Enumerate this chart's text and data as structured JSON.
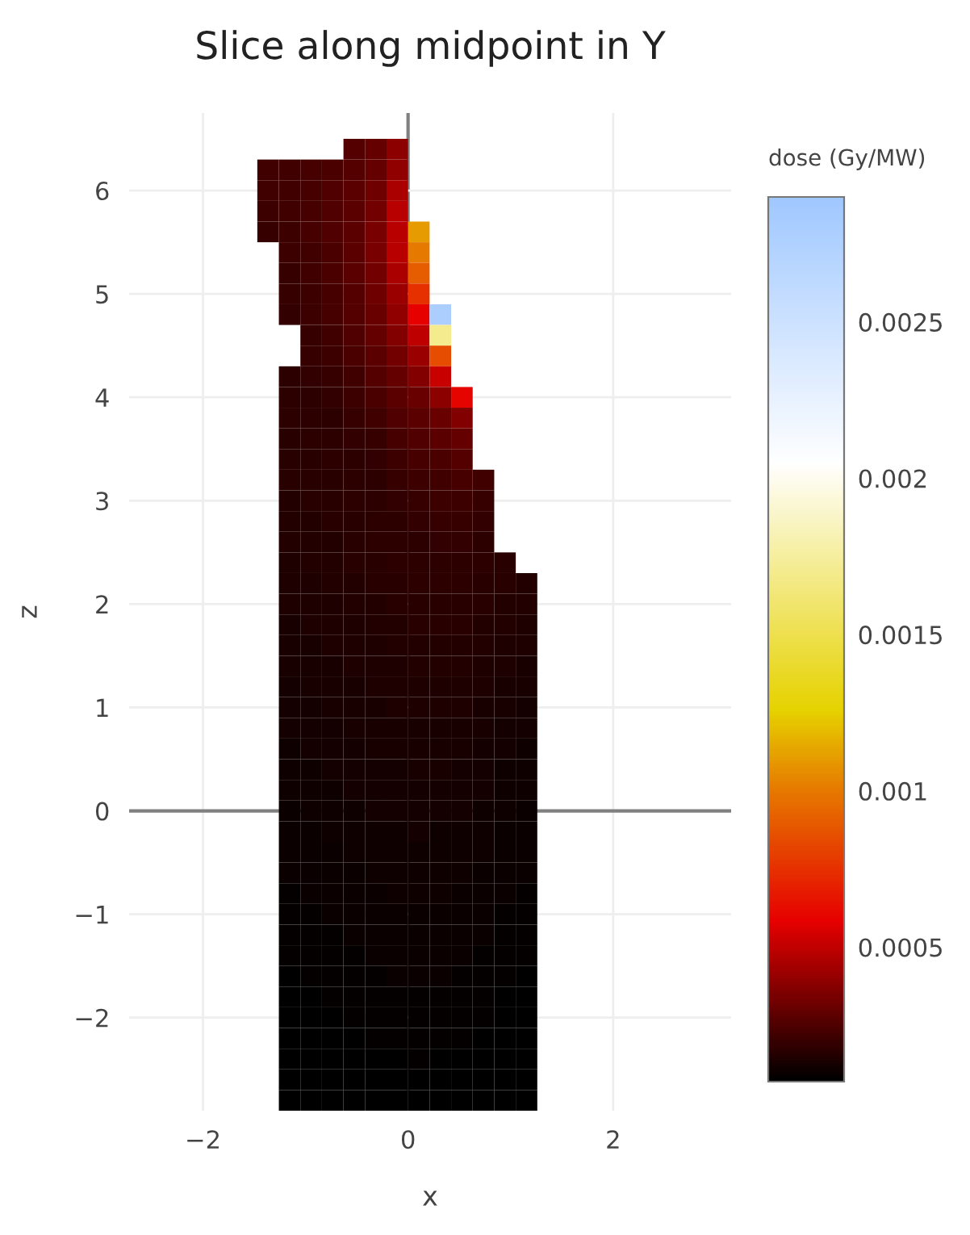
{
  "chart_data": {
    "type": "heatmap",
    "title": "Slice along midpoint in Y",
    "xlabel": "x",
    "ylabel": "z",
    "clabel": "dose (Gy/MW)",
    "x": [
      -1.365,
      -1.155,
      -0.945,
      -0.735,
      -0.525,
      -0.315,
      -0.105,
      0.105,
      0.315,
      0.525,
      0.735,
      0.945,
      1.155
    ],
    "y": [
      6.4,
      6.2,
      6.0,
      5.8,
      5.6,
      5.4,
      5.2,
      5.0,
      4.8,
      4.6,
      4.4,
      4.2,
      4.0,
      3.8,
      3.6,
      3.4,
      3.2,
      3.0,
      2.8,
      2.6,
      2.4,
      2.2,
      2.0,
      1.8,
      1.6,
      1.4,
      1.2,
      1.0,
      0.8,
      0.6,
      0.4,
      0.2,
      0.0,
      -0.2,
      -0.4,
      -0.6,
      -0.8,
      -1.0,
      -1.2,
      -1.4,
      -1.6,
      -1.8,
      -2.0,
      -2.2,
      -2.4,
      -2.6,
      -2.8
    ],
    "cells": [
      [
        null,
        null,
        null,
        null,
        0.00026,
        0.0003,
        0.00038,
        null,
        null,
        null,
        null,
        null,
        null
      ],
      [
        0.00022,
        0.00022,
        0.00023,
        0.00024,
        0.00026,
        0.0003,
        0.0004,
        null,
        null,
        null,
        null,
        null,
        null
      ],
      [
        0.00022,
        0.00022,
        0.00023,
        0.00025,
        0.00027,
        0.00032,
        0.00045,
        null,
        null,
        null,
        null,
        null,
        null
      ],
      [
        0.00021,
        0.00022,
        0.00023,
        0.00025,
        0.00028,
        0.00033,
        0.00048,
        null,
        null,
        null,
        null,
        null,
        null
      ],
      [
        0.0002,
        0.00021,
        0.00023,
        0.00025,
        0.00028,
        0.00034,
        0.00048,
        0.0011,
        null,
        null,
        null,
        null,
        null
      ],
      [
        null,
        0.00021,
        0.00022,
        0.00024,
        0.00028,
        0.00034,
        0.00048,
        0.001,
        null,
        null,
        null,
        null,
        null
      ],
      [
        null,
        0.0002,
        0.00022,
        0.00024,
        0.00027,
        0.00033,
        0.00045,
        0.0009,
        null,
        null,
        null,
        null,
        null
      ],
      [
        null,
        0.0002,
        0.00021,
        0.00023,
        0.00026,
        0.00032,
        0.00042,
        0.00075,
        null,
        null,
        null,
        null,
        null
      ],
      [
        null,
        0.00019,
        0.00021,
        0.00023,
        0.00026,
        0.00031,
        0.0004,
        0.00058,
        0.0028,
        null,
        null,
        null,
        null
      ],
      [
        null,
        null,
        0.0002,
        0.00022,
        0.00025,
        0.0003,
        0.00036,
        0.0005,
        0.0017,
        null,
        null,
        null,
        null
      ],
      [
        null,
        null,
        0.0002,
        0.00021,
        0.00024,
        0.00028,
        0.00033,
        0.00042,
        0.00085,
        null,
        null,
        null,
        null
      ],
      [
        null,
        0.00018,
        0.00019,
        0.0002,
        0.00022,
        0.00026,
        0.0003,
        0.00036,
        0.00052,
        null,
        null,
        null,
        null
      ],
      [
        null,
        0.00017,
        0.00018,
        0.00019,
        0.00021,
        0.00024,
        0.00027,
        0.00031,
        0.00038,
        0.0006,
        null,
        null,
        null
      ],
      [
        null,
        0.00017,
        0.00017,
        0.00018,
        0.0002,
        0.00022,
        0.00025,
        0.00028,
        0.00031,
        0.00036,
        null,
        null,
        null
      ],
      [
        null,
        0.00016,
        0.00017,
        0.00017,
        0.00019,
        0.0002,
        0.00023,
        0.00025,
        0.00027,
        0.0003,
        null,
        null,
        null
      ],
      [
        null,
        0.00016,
        0.00016,
        0.00017,
        0.00018,
        0.00019,
        0.00021,
        0.00023,
        0.00024,
        0.00026,
        null,
        null,
        null
      ],
      [
        null,
        0.00016,
        0.00016,
        0.00016,
        0.00017,
        0.00018,
        0.0002,
        0.00021,
        0.00022,
        0.00023,
        0.00022,
        null,
        null
      ],
      [
        null,
        0.00015,
        0.00016,
        0.00016,
        0.00017,
        0.00018,
        0.00019,
        0.0002,
        0.00021,
        0.00021,
        0.0002,
        null,
        null
      ],
      [
        null,
        0.00015,
        0.00015,
        0.00016,
        0.00016,
        0.00017,
        0.00018,
        0.00019,
        0.0002,
        0.0002,
        0.00019,
        null,
        null
      ],
      [
        null,
        0.00015,
        0.00015,
        0.00015,
        0.00016,
        0.00017,
        0.00018,
        0.00018,
        0.00019,
        0.00019,
        0.00018,
        null,
        null
      ],
      [
        null,
        0.00014,
        0.00015,
        0.00015,
        0.00016,
        0.00016,
        0.00017,
        0.00018,
        0.00018,
        0.00018,
        0.00017,
        0.00016,
        null
      ],
      [
        null,
        0.00014,
        0.00014,
        0.00015,
        0.00015,
        0.00016,
        0.00016,
        0.00017,
        0.00017,
        0.00017,
        0.00016,
        0.00016,
        0.00015
      ],
      [
        null,
        0.00014,
        0.00014,
        0.00014,
        0.00015,
        0.00015,
        0.00016,
        0.00016,
        0.00016,
        0.00016,
        0.00016,
        0.00015,
        0.00015
      ],
      [
        null,
        0.00013,
        0.00014,
        0.00014,
        0.00014,
        0.00015,
        0.00015,
        0.00016,
        0.00016,
        0.00016,
        0.00015,
        0.00015,
        0.00014
      ],
      [
        null,
        0.00013,
        0.00013,
        0.00014,
        0.00014,
        0.00014,
        0.00015,
        0.00015,
        0.00015,
        0.00015,
        0.00015,
        0.00014,
        0.00014
      ],
      [
        null,
        0.00013,
        0.00013,
        0.00013,
        0.00014,
        0.00014,
        0.00014,
        0.00015,
        0.00015,
        0.00015,
        0.00014,
        0.00014,
        0.00013
      ],
      [
        null,
        0.00012,
        0.00013,
        0.00013,
        0.00013,
        0.00014,
        0.00014,
        0.00014,
        0.00014,
        0.00014,
        0.00014,
        0.00013,
        0.00013
      ],
      [
        null,
        0.00012,
        0.00012,
        0.00013,
        0.00013,
        0.00013,
        0.00014,
        0.00014,
        0.00014,
        0.00014,
        0.00013,
        0.00013,
        0.00012
      ],
      [
        null,
        0.00012,
        0.00012,
        0.00012,
        0.00013,
        0.00013,
        0.00013,
        0.00013,
        0.00013,
        0.00013,
        0.00013,
        0.00012,
        0.00012
      ],
      [
        null,
        0.00011,
        0.00012,
        0.00012,
        0.00012,
        0.00013,
        0.00013,
        0.00013,
        0.00013,
        0.00013,
        0.00012,
        0.00012,
        0.00011
      ],
      [
        null,
        0.00011,
        0.00011,
        0.00012,
        0.00012,
        0.00012,
        0.00012,
        0.00013,
        0.00013,
        0.00012,
        0.00012,
        0.00011,
        0.00011
      ],
      [
        null,
        0.00011,
        0.00011,
        0.00011,
        0.00012,
        0.00012,
        0.00012,
        0.00012,
        0.00012,
        0.00012,
        0.00012,
        0.00011,
        0.00011
      ],
      [
        null,
        0.0001,
        0.00011,
        0.00011,
        0.00011,
        0.00012,
        0.00012,
        0.00012,
        0.00012,
        0.00012,
        0.00011,
        0.00011,
        0.0001
      ],
      [
        null,
        0.0001,
        0.0001,
        0.00011,
        0.00011,
        0.00011,
        0.00011,
        0.00012,
        0.00011,
        0.00011,
        0.00011,
        0.0001,
        0.0001
      ],
      [
        null,
        0.0001,
        0.0001,
        0.0001,
        0.00011,
        0.00011,
        0.00011,
        0.00011,
        0.00011,
        0.00011,
        0.00011,
        0.0001,
        0.0001
      ],
      [
        null,
        0.0001,
        0.0001,
        0.0001,
        0.0001,
        0.00011,
        0.00011,
        0.00011,
        0.00011,
        0.00011,
        0.0001,
        0.0001,
        0.0001
      ],
      [
        null,
        9e-05,
        0.0001,
        0.0001,
        0.0001,
        0.0001,
        0.00011,
        0.00011,
        0.00011,
        0.0001,
        0.0001,
        0.0001,
        9e-05
      ],
      [
        null,
        9e-05,
        9e-05,
        0.0001,
        0.0001,
        0.0001,
        0.0001,
        0.0001,
        0.0001,
        0.0001,
        0.0001,
        9e-05,
        9e-05
      ],
      [
        null,
        9e-05,
        9e-05,
        9e-05,
        0.0001,
        0.0001,
        0.0001,
        0.0001,
        0.0001,
        0.0001,
        0.0001,
        9e-05,
        9e-05
      ],
      [
        null,
        9e-05,
        9e-05,
        9e-05,
        9e-05,
        0.0001,
        0.0001,
        0.0001,
        0.0001,
        0.0001,
        9e-05,
        9e-05,
        9e-05
      ],
      [
        null,
        8e-05,
        9e-05,
        9e-05,
        9e-05,
        9e-05,
        0.0001,
        0.0001,
        0.0001,
        9e-05,
        9e-05,
        9e-05,
        8e-05
      ],
      [
        null,
        8e-05,
        8e-05,
        9e-05,
        9e-05,
        9e-05,
        9e-05,
        9e-05,
        9e-05,
        9e-05,
        9e-05,
        8e-05,
        8e-05
      ],
      [
        null,
        8e-05,
        8e-05,
        8e-05,
        9e-05,
        9e-05,
        9e-05,
        9e-05,
        9e-05,
        9e-05,
        9e-05,
        8e-05,
        8e-05
      ],
      [
        null,
        8e-05,
        8e-05,
        8e-05,
        8e-05,
        9e-05,
        9e-05,
        9e-05,
        9e-05,
        9e-05,
        8e-05,
        8e-05,
        8e-05
      ],
      [
        null,
        7e-05,
        8e-05,
        8e-05,
        8e-05,
        8e-05,
        8e-05,
        9e-05,
        8e-05,
        8e-05,
        8e-05,
        8e-05,
        7e-05
      ],
      [
        null,
        7e-05,
        7e-05,
        8e-05,
        8e-05,
        8e-05,
        8e-05,
        8e-05,
        8e-05,
        8e-05,
        8e-05,
        7e-05,
        7e-05
      ],
      [
        null,
        7e-05,
        7e-05,
        7e-05,
        8e-05,
        8e-05,
        8e-05,
        8e-05,
        8e-05,
        8e-05,
        7e-05,
        7e-05,
        7e-05
      ]
    ],
    "clim": [
      7e-05,
      0.0029
    ],
    "cticks": [
      0.0005,
      0.001,
      0.0015,
      0.002,
      0.0025
    ],
    "xlim": [
      -2.72,
      3.15
    ],
    "ylim": [
      -2.9,
      6.75
    ],
    "xticks": [
      -2,
      0,
      2
    ],
    "yticks": [
      -2,
      -1,
      0,
      1,
      2,
      3,
      4,
      5,
      6
    ],
    "grid": true
  }
}
